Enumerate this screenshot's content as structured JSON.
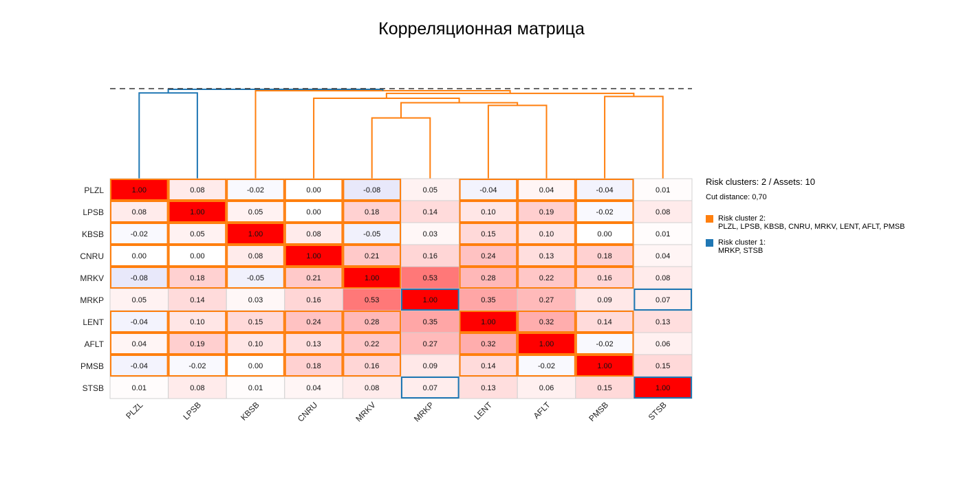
{
  "chart_data": {
    "type": "heatmap",
    "title": "Корреляционная матрица",
    "labels": [
      "PLZL",
      "LPSB",
      "KBSB",
      "CNRU",
      "MRKV",
      "MRKP",
      "LENT",
      "AFLT",
      "PMSB",
      "STSB"
    ],
    "values": [
      [
        1.0,
        0.08,
        -0.02,
        0.0,
        -0.08,
        0.05,
        -0.04,
        0.04,
        -0.04,
        0.01
      ],
      [
        0.08,
        1.0,
        0.05,
        0.0,
        0.18,
        0.14,
        0.1,
        0.19,
        -0.02,
        0.08
      ],
      [
        -0.02,
        0.05,
        1.0,
        0.08,
        -0.05,
        0.03,
        0.15,
        0.1,
        0.0,
        0.01
      ],
      [
        0.0,
        0.0,
        0.08,
        1.0,
        0.21,
        0.16,
        0.24,
        0.13,
        0.18,
        0.04
      ],
      [
        -0.08,
        0.18,
        -0.05,
        0.21,
        1.0,
        0.53,
        0.28,
        0.22,
        0.16,
        0.08
      ],
      [
        0.05,
        0.14,
        0.03,
        0.16,
        0.53,
        1.0,
        0.35,
        0.27,
        0.09,
        0.07
      ],
      [
        -0.04,
        0.1,
        0.15,
        0.24,
        0.28,
        0.35,
        1.0,
        0.32,
        0.14,
        0.13
      ],
      [
        0.04,
        0.19,
        0.1,
        0.13,
        0.22,
        0.27,
        0.32,
        1.0,
        -0.02,
        0.06
      ],
      [
        -0.04,
        -0.02,
        0.0,
        0.18,
        0.16,
        0.09,
        0.14,
        -0.02,
        1.0,
        0.15
      ],
      [
        0.01,
        0.08,
        0.01,
        0.04,
        0.08,
        0.07,
        0.13,
        0.06,
        0.15,
        1.0
      ]
    ],
    "value_format": "0.00",
    "color_scale": {
      "negative": "#0000ff",
      "zero": "#ffffff",
      "positive": "#ff0000"
    },
    "clusters": [
      {
        "id": 2,
        "name": "Risk cluster 2",
        "color": "#ff7f0e",
        "members": [
          "PLZL",
          "LPSB",
          "KBSB",
          "CNRU",
          "MRKV",
          "LENT",
          "AFLT",
          "PMSB"
        ]
      },
      {
        "id": 1,
        "name": "Risk cluster 1",
        "color": "#1f77b4",
        "members": [
          "MRKP",
          "STSB"
        ]
      }
    ],
    "cut_distance": 0.7,
    "dendrogram": {
      "max_height": 1.0,
      "links": [
        {
          "left": "PLZL",
          "right": "LPSB",
          "height": 0.96,
          "color": "#1f77b4"
        },
        {
          "left": "MRKV",
          "right": "MRKP",
          "height": 0.68,
          "color": "#ff7f0e"
        },
        {
          "left": "LENT",
          "right": "AFLT",
          "height": 0.82,
          "color": "#ff7f0e"
        },
        {
          "left": "link1",
          "right": "link2",
          "height": 0.85,
          "color": "#ff7f0e"
        },
        {
          "left": "CNRU",
          "right": "link3",
          "height": 0.9,
          "color": "#ff7f0e"
        },
        {
          "left": "PMSB",
          "right": "STSB",
          "height": 0.92,
          "color": "#ff7f0e"
        },
        {
          "left": "link4",
          "right": "link5",
          "height": 0.955,
          "color": "#ff7f0e"
        },
        {
          "left": "KBSB",
          "right": "link6",
          "height": 0.985,
          "color": "#ff7f0e"
        },
        {
          "left": "link0",
          "right": "link7",
          "height": 1.0,
          "color": "#1f77b4"
        }
      ],
      "cut_line_style": "dashed"
    },
    "legend_position": "right"
  },
  "legend": {
    "summary": "Risk clusters: 2 / Assets: 10",
    "cut": "Cut distance: 0,70",
    "entries": [
      {
        "title": "Risk cluster 2:",
        "members": "PLZL, LPSB, KBSB, CNRU, MRKV, LENT, AFLT, PMSB",
        "color": "#ff7f0e"
      },
      {
        "title": "Risk cluster 1:",
        "members": "MRKP, STSB",
        "color": "#1f77b4"
      }
    ]
  }
}
